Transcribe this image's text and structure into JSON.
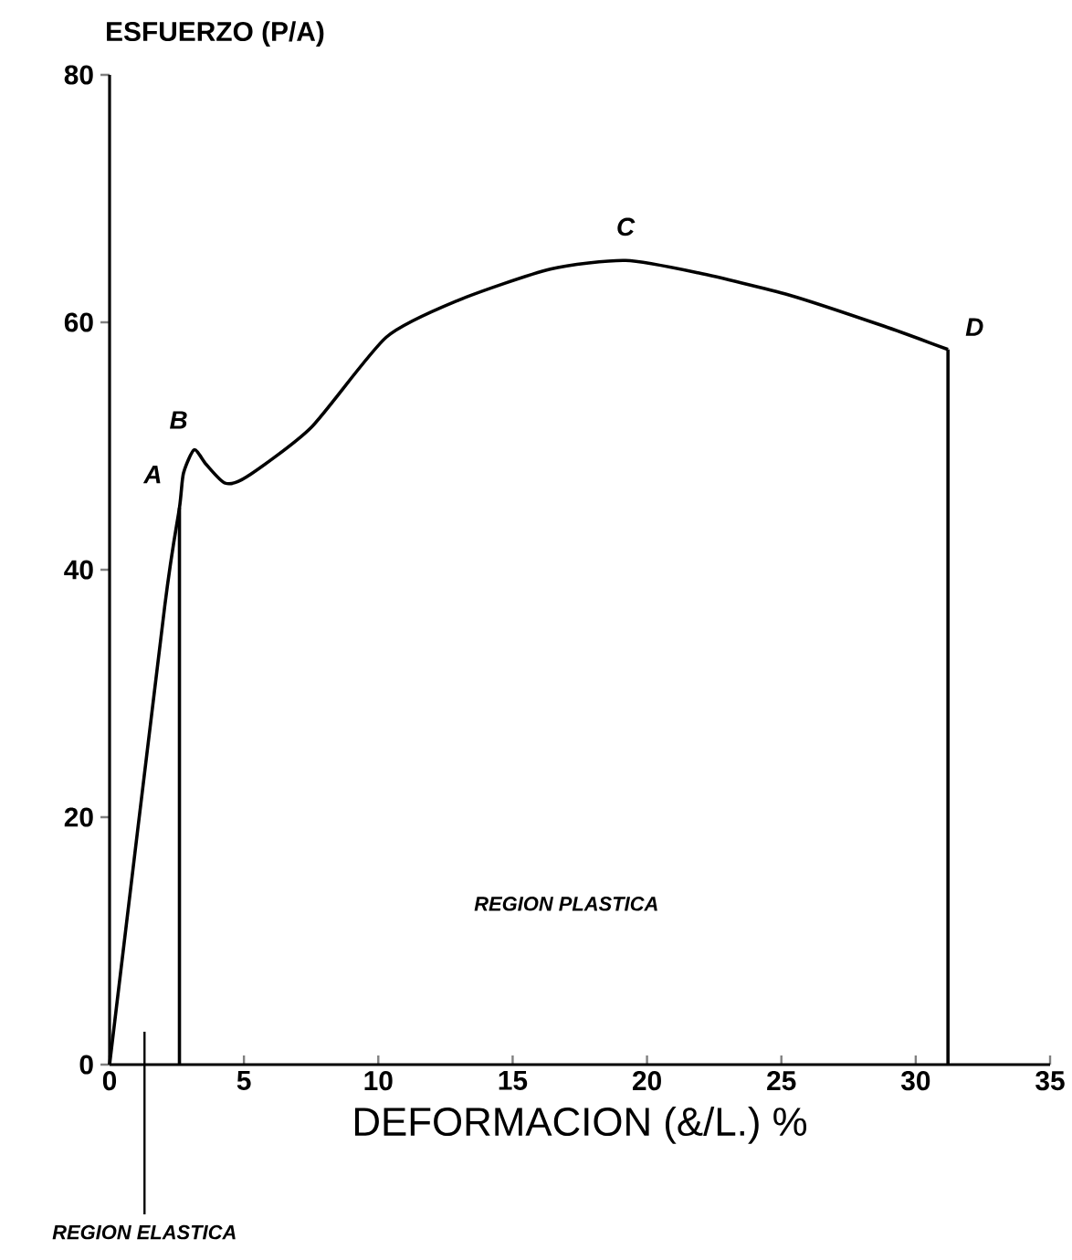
{
  "chart_data": {
    "type": "line",
    "xlabel": "DEFORMACION (&/L.) %",
    "ylabel": "ESFUERZO (P/A)",
    "series": [
      {
        "color": "#000000",
        "x": [
          0,
          2.05,
          2.6,
          2.75,
          3.15,
          3.6,
          4.3,
          5.1,
          7.5,
          10.3,
          13,
          16.4,
          19.2,
          21.9,
          25.3,
          28.8,
          31.2
        ],
        "values": [
          0,
          37,
          45,
          47.8,
          49.7,
          48.5,
          47,
          47.5,
          51.5,
          58.8,
          61.8,
          64.3,
          65,
          64,
          62.2,
          59.7,
          57.8
        ]
      },
      {
        "color": "#000000",
        "x": [
          2.6,
          2.6
        ],
        "values": [
          0,
          45
        ]
      },
      {
        "color": "#000000",
        "x": [
          31.2,
          31.2
        ],
        "values": [
          0,
          57.8
        ]
      }
    ],
    "xlim": [
      0,
      35
    ],
    "xticks": [
      0,
      5,
      10,
      15,
      20,
      25,
      30,
      35
    ],
    "ylim": [
      0,
      80
    ],
    "yticks": [
      0,
      20,
      40,
      60,
      80
    ],
    "grid": false,
    "marker": "none",
    "line_style": "solid",
    "annotations": [
      {
        "text": "A",
        "x": 2.6,
        "y": 45
      },
      {
        "text": "B",
        "x": 3.15,
        "y": 49.7
      },
      {
        "text": "C",
        "x": 19.2,
        "y": 65
      },
      {
        "text": "D",
        "x": 31.2,
        "y": 57.8
      },
      "REGION PLASTICA",
      "REGION ELASTICA"
    ]
  }
}
